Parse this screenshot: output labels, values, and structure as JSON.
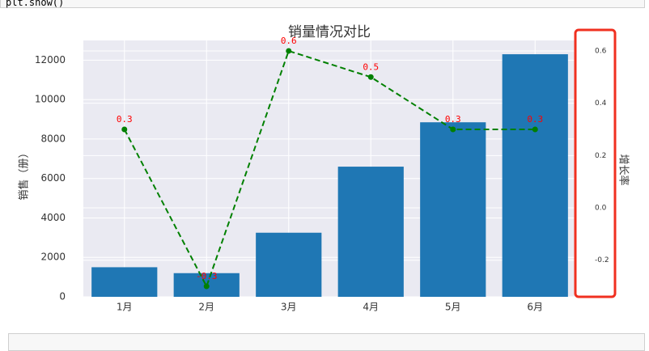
{
  "code_top": "plt.show()",
  "chart_data": {
    "type": "bar_line",
    "title": "销量情况对比",
    "categories": [
      "1月",
      "2月",
      "3月",
      "4月",
      "5月",
      "6月"
    ],
    "series": [
      {
        "type": "bar",
        "color": "#1f77b4",
        "values": [
          1500,
          1200,
          3250,
          6600,
          8850,
          12300
        ]
      },
      {
        "type": "line",
        "axis": "y2",
        "color": "#008000",
        "label_color": "#ff0000",
        "values": [
          0.3,
          -0.3,
          0.6,
          0.5,
          0.3,
          0.3
        ]
      }
    ],
    "ylabel": "销售（册）",
    "y2label": "增长率",
    "ylim": [
      0,
      13000
    ],
    "yticks": [
      0,
      2000,
      4000,
      6000,
      8000,
      10000,
      12000
    ],
    "y2lim": [
      -0.34,
      0.64
    ],
    "y2ticks": [
      -0.2,
      {
        "value": 0,
        "label": "0.0"
      },
      0.2,
      0.4,
      0.6
    ],
    "grid": true
  }
}
